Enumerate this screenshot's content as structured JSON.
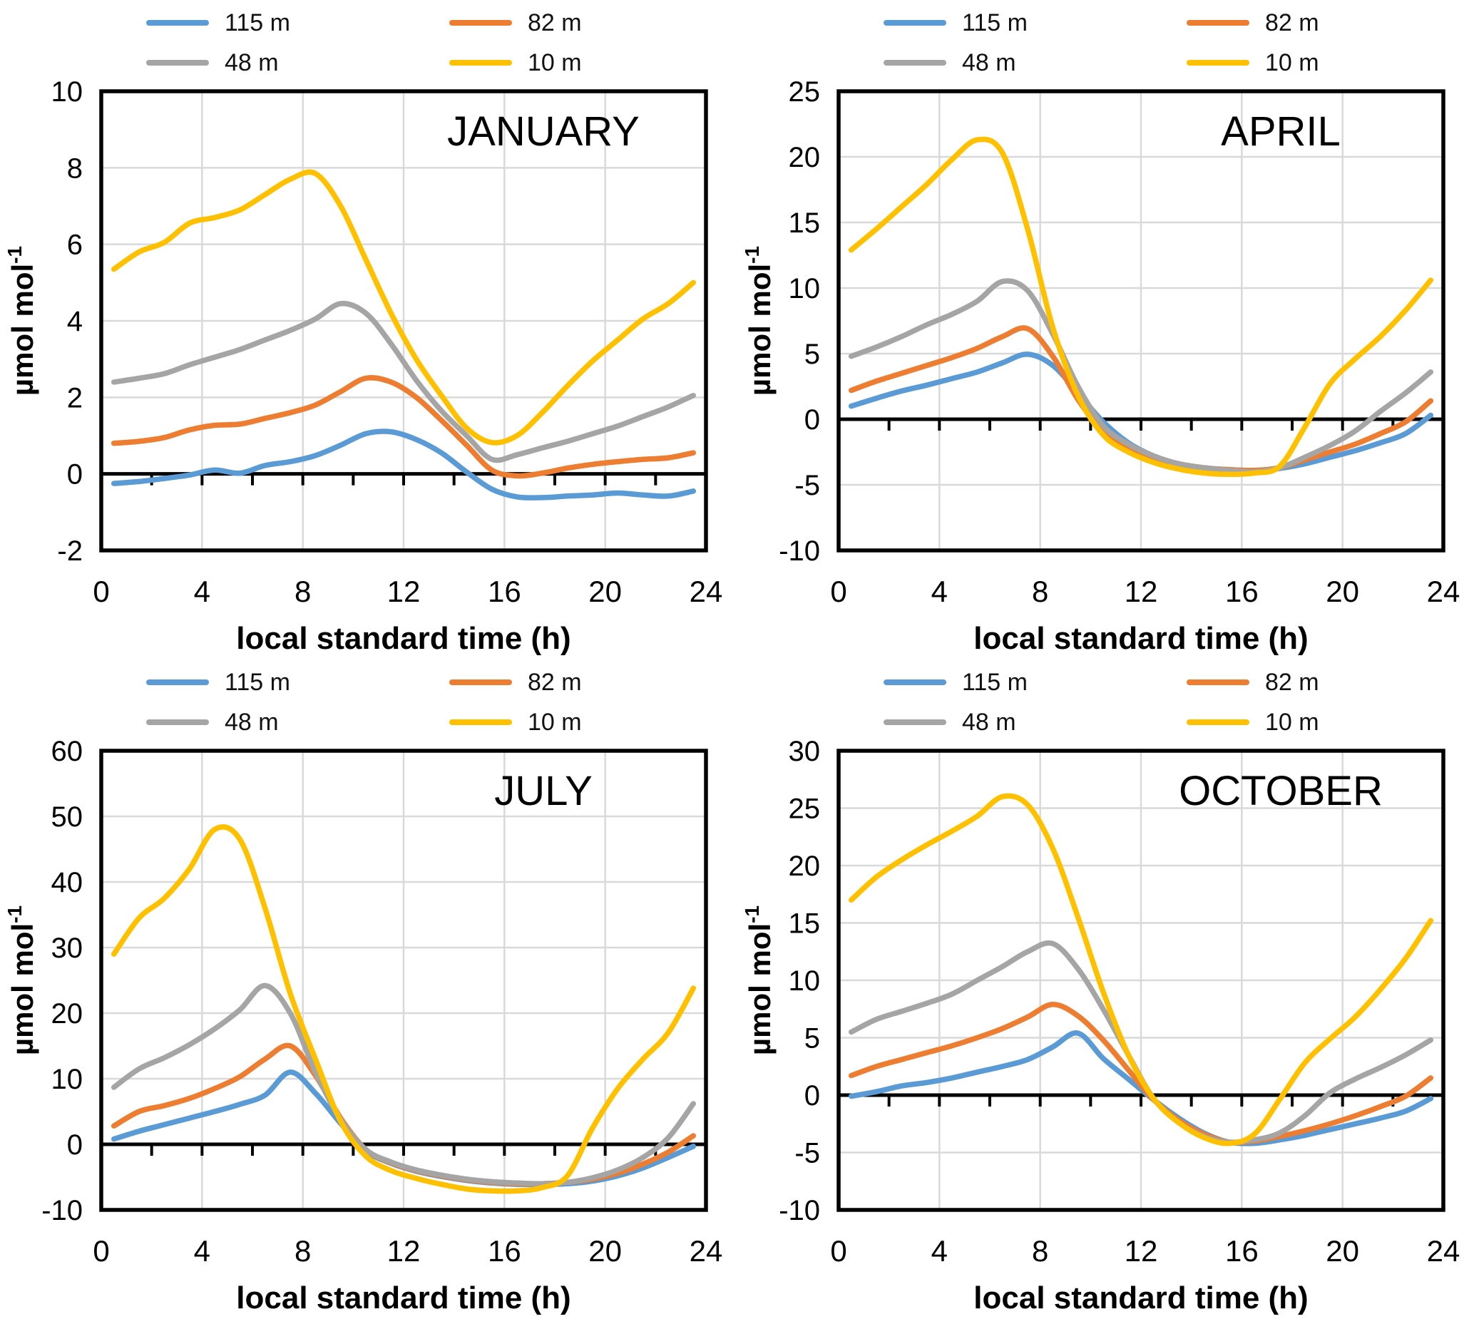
{
  "figure": {
    "xlabel": "local standard time (h)",
    "ylabel": "µmol mol",
    "ylabel_superscript": "-1",
    "grid_color": "#D9D9D9",
    "axis_color": "#000000",
    "title_color": "#1a1a1a",
    "legend": [
      {
        "label": "115 m",
        "color": "#5B9BD5"
      },
      {
        "label": "82 m",
        "color": "#ED7D31"
      },
      {
        "label": "48 m",
        "color": "#A5A5A5"
      },
      {
        "label": "10 m",
        "color": "#FFC000"
      }
    ]
  },
  "chart_data": [
    {
      "type": "line",
      "title": "JANUARY",
      "xlabel": "local standard time (h)",
      "ylabel": "µmol mol-1",
      "legend_position": "top",
      "grid": true,
      "x": [
        0.5,
        1.5,
        2.5,
        3.5,
        4.5,
        5.5,
        6.5,
        7.5,
        8.5,
        9.5,
        10.5,
        11.5,
        12.5,
        13.5,
        14.5,
        15.5,
        16.5,
        17.5,
        18.5,
        19.5,
        20.5,
        21.5,
        22.5,
        23.5
      ],
      "xlim": [
        0,
        24
      ],
      "xticks": [
        0,
        4,
        8,
        12,
        16,
        20,
        24
      ],
      "xtick_minor_step": 2,
      "ylim": [
        -2,
        10
      ],
      "yticks": [
        -2,
        0,
        2,
        4,
        6,
        8,
        10
      ],
      "series": [
        {
          "name": "115 m",
          "color": "#5B9BD5",
          "values": [
            -0.25,
            -0.2,
            -0.12,
            -0.03,
            0.1,
            0.02,
            0.22,
            0.32,
            0.48,
            0.75,
            1.05,
            1.1,
            0.9,
            0.55,
            0.05,
            -0.4,
            -0.6,
            -0.62,
            -0.58,
            -0.55,
            -0.5,
            -0.55,
            -0.58,
            -0.45
          ]
        },
        {
          "name": "82 m",
          "color": "#ED7D31",
          "values": [
            0.8,
            0.85,
            0.95,
            1.15,
            1.27,
            1.3,
            1.45,
            1.6,
            1.8,
            2.15,
            2.5,
            2.4,
            2.0,
            1.4,
            0.75,
            0.1,
            -0.05,
            0.02,
            0.15,
            0.25,
            0.32,
            0.38,
            0.42,
            0.55
          ]
        },
        {
          "name": "48 m",
          "color": "#A5A5A5",
          "values": [
            2.4,
            2.5,
            2.62,
            2.85,
            3.05,
            3.25,
            3.5,
            3.75,
            4.05,
            4.45,
            4.2,
            3.4,
            2.45,
            1.65,
            1.0,
            0.38,
            0.5,
            0.68,
            0.85,
            1.05,
            1.25,
            1.5,
            1.75,
            2.05
          ]
        },
        {
          "name": "10 m",
          "color": "#FFC000",
          "values": [
            5.35,
            5.8,
            6.05,
            6.55,
            6.7,
            6.9,
            7.3,
            7.7,
            7.85,
            7.0,
            5.6,
            4.2,
            3.0,
            2.05,
            1.2,
            0.82,
            1.0,
            1.6,
            2.3,
            2.95,
            3.5,
            4.05,
            4.45,
            5.0
          ]
        }
      ]
    },
    {
      "type": "line",
      "title": "APRIL",
      "xlabel": "local standard time (h)",
      "ylabel": "µmol mol-1",
      "legend_position": "top",
      "grid": true,
      "x": [
        0.5,
        1.5,
        2.5,
        3.5,
        4.5,
        5.5,
        6.5,
        7.5,
        8.5,
        9.5,
        10.5,
        11.5,
        12.5,
        13.5,
        14.5,
        15.5,
        16.5,
        17.5,
        18.5,
        19.5,
        20.5,
        21.5,
        22.5,
        23.5
      ],
      "xlim": [
        0,
        24
      ],
      "xticks": [
        0,
        4,
        8,
        12,
        16,
        20,
        24
      ],
      "xtick_minor_step": 2,
      "ylim": [
        -10,
        25
      ],
      "yticks": [
        -10,
        -5,
        0,
        5,
        10,
        15,
        20,
        25
      ],
      "series": [
        {
          "name": "115 m",
          "color": "#5B9BD5",
          "values": [
            1.0,
            1.6,
            2.15,
            2.6,
            3.1,
            3.6,
            4.3,
            4.95,
            4.1,
            2.0,
            -0.2,
            -1.8,
            -2.8,
            -3.4,
            -3.7,
            -3.85,
            -3.9,
            -3.75,
            -3.4,
            -2.9,
            -2.4,
            -1.8,
            -1.1,
            0.3
          ]
        },
        {
          "name": "82 m",
          "color": "#ED7D31",
          "values": [
            2.2,
            2.9,
            3.5,
            4.1,
            4.7,
            5.4,
            6.3,
            6.9,
            4.8,
            1.5,
            -0.9,
            -2.1,
            -2.9,
            -3.4,
            -3.7,
            -3.85,
            -3.9,
            -3.7,
            -3.1,
            -2.5,
            -1.9,
            -1.1,
            -0.2,
            1.4
          ]
        },
        {
          "name": "48 m",
          "color": "#A5A5A5",
          "values": [
            4.8,
            5.5,
            6.3,
            7.2,
            8.0,
            9.0,
            10.5,
            9.8,
            6.5,
            2.5,
            -0.5,
            -1.9,
            -2.8,
            -3.4,
            -3.7,
            -3.9,
            -4.0,
            -3.7,
            -2.9,
            -2.0,
            -0.9,
            0.6,
            2.0,
            3.6
          ]
        },
        {
          "name": "10 m",
          "color": "#FFC000",
          "values": [
            12.9,
            14.5,
            16.2,
            17.9,
            19.8,
            21.3,
            20.3,
            14.5,
            7.0,
            1.8,
            -1.2,
            -2.5,
            -3.3,
            -3.8,
            -4.1,
            -4.2,
            -4.1,
            -3.6,
            -0.6,
            2.7,
            4.6,
            6.3,
            8.3,
            10.6
          ]
        }
      ]
    },
    {
      "type": "line",
      "title": "JULY",
      "xlabel": "local standard time (h)",
      "ylabel": "µmol mol-1",
      "legend_position": "top",
      "grid": true,
      "x": [
        0.5,
        1.5,
        2.5,
        3.5,
        4.5,
        5.5,
        6.5,
        7.5,
        8.5,
        9.5,
        10.5,
        11.5,
        12.5,
        13.5,
        14.5,
        15.5,
        16.5,
        17.5,
        18.5,
        19.5,
        20.5,
        21.5,
        22.5,
        23.5
      ],
      "xlim": [
        0,
        24
      ],
      "xticks": [
        0,
        4,
        8,
        12,
        16,
        20,
        24
      ],
      "xtick_minor_step": 2,
      "ylim": [
        -10,
        60
      ],
      "yticks": [
        -10,
        0,
        10,
        20,
        30,
        40,
        50,
        60
      ],
      "series": [
        {
          "name": "115 m",
          "color": "#5B9BD5",
          "values": [
            0.8,
            2.0,
            3.0,
            4.0,
            5.0,
            6.1,
            7.5,
            11.0,
            7.8,
            3.2,
            -1.0,
            -2.9,
            -4.1,
            -4.9,
            -5.5,
            -5.9,
            -6.1,
            -6.1,
            -6.0,
            -5.6,
            -4.8,
            -3.6,
            -2.0,
            -0.3
          ]
        },
        {
          "name": "82 m",
          "color": "#ED7D31",
          "values": [
            2.8,
            5.0,
            5.9,
            7.0,
            8.5,
            10.3,
            13.0,
            15.0,
            10.5,
            4.0,
            -0.8,
            -2.8,
            -4.0,
            -4.8,
            -5.4,
            -5.8,
            -6.0,
            -6.0,
            -5.8,
            -5.3,
            -4.4,
            -3.0,
            -1.2,
            1.3
          ]
        },
        {
          "name": "48 m",
          "color": "#A5A5A5",
          "values": [
            8.7,
            11.5,
            13.2,
            15.2,
            17.6,
            20.5,
            24.2,
            20.0,
            11.0,
            3.8,
            -0.8,
            -2.7,
            -3.9,
            -4.7,
            -5.3,
            -5.7,
            -5.9,
            -6.0,
            -5.8,
            -5.1,
            -3.9,
            -2.0,
            1.0,
            6.2
          ]
        },
        {
          "name": "10 m",
          "color": "#FFC000",
          "values": [
            29.0,
            34.5,
            37.5,
            42.0,
            48.0,
            46.5,
            36.0,
            23.0,
            13.0,
            3.5,
            -1.8,
            -4.0,
            -5.2,
            -6.1,
            -6.8,
            -7.1,
            -7.1,
            -6.6,
            -4.8,
            2.5,
            8.5,
            13.0,
            17.0,
            23.8
          ]
        }
      ]
    },
    {
      "type": "line",
      "title": "OCTOBER",
      "xlabel": "local standard time (h)",
      "ylabel": "µmol mol-1",
      "legend_position": "top",
      "grid": true,
      "x": [
        0.5,
        1.5,
        2.5,
        3.5,
        4.5,
        5.5,
        6.5,
        7.5,
        8.5,
        9.5,
        10.5,
        11.5,
        12.5,
        13.5,
        14.5,
        15.5,
        16.5,
        17.5,
        18.5,
        19.5,
        20.5,
        21.5,
        22.5,
        23.5
      ],
      "xlim": [
        0,
        24
      ],
      "xticks": [
        0,
        4,
        8,
        12,
        16,
        20,
        24
      ],
      "xtick_minor_step": 2,
      "ylim": [
        -10,
        30
      ],
      "yticks": [
        -10,
        -5,
        0,
        5,
        10,
        15,
        20,
        25,
        30
      ],
      "series": [
        {
          "name": "115 m",
          "color": "#5B9BD5",
          "values": [
            -0.1,
            0.3,
            0.8,
            1.1,
            1.5,
            2.0,
            2.5,
            3.1,
            4.2,
            5.4,
            3.2,
            1.4,
            -0.4,
            -2.0,
            -3.3,
            -4.1,
            -4.2,
            -3.9,
            -3.5,
            -3.0,
            -2.5,
            -2.0,
            -1.4,
            -0.3
          ]
        },
        {
          "name": "82 m",
          "color": "#ED7D31",
          "values": [
            1.7,
            2.5,
            3.1,
            3.7,
            4.3,
            5.0,
            5.8,
            6.8,
            7.9,
            6.9,
            4.8,
            2.2,
            -0.4,
            -2.2,
            -3.4,
            -4.1,
            -4.0,
            -3.6,
            -3.1,
            -2.5,
            -1.8,
            -1.0,
            -0.1,
            1.5
          ]
        },
        {
          "name": "48 m",
          "color": "#A5A5A5",
          "values": [
            5.5,
            6.6,
            7.3,
            8.0,
            8.8,
            10.0,
            11.2,
            12.5,
            13.2,
            11.0,
            7.5,
            3.5,
            -0.3,
            -2.4,
            -3.6,
            -4.1,
            -3.9,
            -3.3,
            -1.8,
            0.2,
            1.4,
            2.4,
            3.5,
            4.8
          ]
        },
        {
          "name": "10 m",
          "color": "#FFC000",
          "values": [
            17.0,
            19.0,
            20.5,
            21.8,
            23.0,
            24.3,
            26.0,
            25.3,
            21.5,
            15.5,
            9.0,
            3.5,
            -0.3,
            -2.4,
            -3.7,
            -4.2,
            -3.4,
            -0.4,
            2.8,
            4.9,
            6.8,
            9.2,
            11.9,
            15.2
          ]
        }
      ]
    }
  ]
}
